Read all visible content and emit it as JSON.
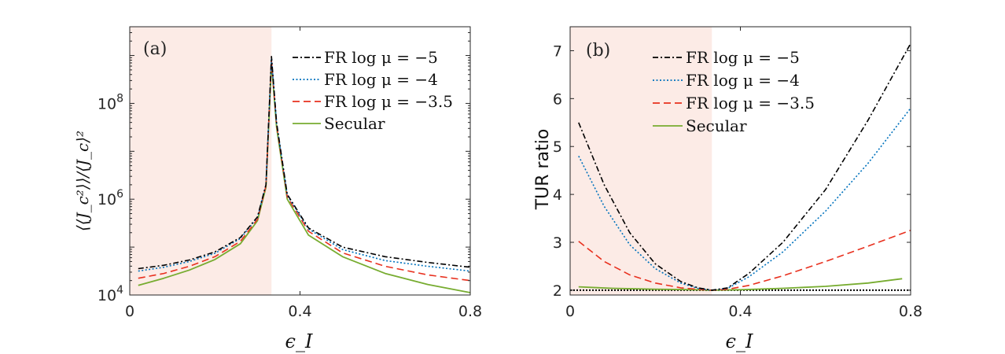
{
  "chart_data": [
    {
      "panel": "(a)",
      "type": "line",
      "yscale": "log",
      "xlabel": "ϵ_I",
      "ylabel": "⟨⟨J_c²⟩⟩/⟨J_c⟩²",
      "xlim": [
        0,
        0.8
      ],
      "ylim_log10": [
        4,
        9.6
      ],
      "xticks": [
        0,
        0.4,
        0.8
      ],
      "xtick_labels": [
        "0",
        "0.4",
        "0.8"
      ],
      "yticks_log10": [
        4,
        6,
        8
      ],
      "shaded_region": [
        0,
        0.333
      ],
      "legend": [
        "FR log μ = −5",
        "FR log μ = −4",
        "FR log μ = −3.5",
        "Secular"
      ],
      "series": [
        {
          "name": "FR log μ = −5",
          "color": "#000000",
          "style": "dashdot",
          "x": [
            0.02,
            0.08,
            0.14,
            0.2,
            0.26,
            0.3,
            0.32,
            0.333,
            0.345,
            0.37,
            0.42,
            0.5,
            0.6,
            0.7,
            0.8
          ],
          "log10_y": [
            4.55,
            4.62,
            4.73,
            4.9,
            5.2,
            5.63,
            6.3,
            8.98,
            7.6,
            6.1,
            5.4,
            5.0,
            4.8,
            4.68,
            4.58
          ]
        },
        {
          "name": "FR log μ = −4",
          "color": "#0072BD",
          "style": "dotted",
          "x": [
            0.02,
            0.08,
            0.14,
            0.2,
            0.26,
            0.3,
            0.32,
            0.333,
            0.345,
            0.37,
            0.42,
            0.5,
            0.6,
            0.7,
            0.8
          ],
          "log10_y": [
            4.5,
            4.58,
            4.7,
            4.87,
            5.18,
            5.62,
            6.3,
            8.95,
            7.58,
            6.08,
            5.38,
            4.95,
            4.72,
            4.6,
            4.5
          ]
        },
        {
          "name": "FR log μ = −3.5",
          "color": "#E8301E",
          "style": "dashed",
          "x": [
            0.02,
            0.08,
            0.14,
            0.2,
            0.26,
            0.3,
            0.32,
            0.333,
            0.345,
            0.37,
            0.42,
            0.5,
            0.6,
            0.7,
            0.8
          ],
          "log10_y": [
            4.35,
            4.45,
            4.6,
            4.8,
            5.12,
            5.58,
            6.28,
            8.9,
            7.55,
            6.05,
            5.33,
            4.88,
            4.6,
            4.42,
            4.3
          ]
        },
        {
          "name": "Secular",
          "color": "#77AC30",
          "style": "solid",
          "x": [
            0.02,
            0.08,
            0.14,
            0.2,
            0.26,
            0.3,
            0.32,
            0.333,
            0.345,
            0.37,
            0.42,
            0.5,
            0.6,
            0.7,
            0.8
          ],
          "log10_y": [
            4.2,
            4.35,
            4.52,
            4.74,
            5.07,
            5.55,
            6.25,
            8.85,
            7.5,
            6.0,
            5.25,
            4.8,
            4.45,
            4.22,
            4.05
          ]
        }
      ]
    },
    {
      "panel": "(b)",
      "type": "line",
      "xlabel": "ϵ_I",
      "ylabel": "TUR ratio",
      "xlim": [
        0,
        0.8
      ],
      "ylim": [
        1.9,
        7.5
      ],
      "xticks": [
        0,
        0.4,
        0.8
      ],
      "xtick_labels": [
        "0",
        "0.4",
        "0.8"
      ],
      "yticks": [
        2,
        3,
        4,
        5,
        6,
        7
      ],
      "ytick_labels": [
        "2",
        "3",
        "4",
        "5",
        "6",
        "7"
      ],
      "shaded_region": [
        0,
        0.333
      ],
      "reference_line": 2,
      "legend": [
        "FR log μ = −5",
        "FR log μ = −4",
        "FR log μ = −3.5",
        "Secular"
      ],
      "series": [
        {
          "name": "FR log μ = −5",
          "color": "#000000",
          "style": "dashdot",
          "x": [
            0.02,
            0.08,
            0.14,
            0.2,
            0.26,
            0.3,
            0.333,
            0.37,
            0.42,
            0.5,
            0.6,
            0.7,
            0.8
          ],
          "values": [
            5.5,
            4.2,
            3.2,
            2.55,
            2.18,
            2.05,
            2.0,
            2.05,
            2.35,
            3.0,
            4.1,
            5.55,
            7.15
          ]
        },
        {
          "name": "FR log μ = −4",
          "color": "#0072BD",
          "style": "dotted",
          "x": [
            0.02,
            0.08,
            0.14,
            0.2,
            0.26,
            0.3,
            0.333,
            0.37,
            0.42,
            0.5,
            0.6,
            0.7,
            0.8
          ],
          "values": [
            4.8,
            3.75,
            2.95,
            2.45,
            2.15,
            2.04,
            2.0,
            2.04,
            2.28,
            2.8,
            3.65,
            4.65,
            5.8
          ]
        },
        {
          "name": "FR log μ = −3.5",
          "color": "#E8301E",
          "style": "dashed",
          "x": [
            0.02,
            0.08,
            0.14,
            0.2,
            0.26,
            0.3,
            0.333,
            0.37,
            0.42,
            0.5,
            0.6,
            0.7,
            0.8
          ],
          "values": [
            3.02,
            2.6,
            2.32,
            2.15,
            2.05,
            2.02,
            2.0,
            2.02,
            2.1,
            2.3,
            2.6,
            2.92,
            3.25
          ]
        },
        {
          "name": "Secular",
          "color": "#77AC30",
          "style": "solid",
          "x": [
            0.02,
            0.1,
            0.2,
            0.3,
            0.333,
            0.4,
            0.5,
            0.6,
            0.7,
            0.78
          ],
          "values": [
            2.07,
            2.04,
            2.02,
            2.01,
            2.0,
            2.01,
            2.04,
            2.08,
            2.15,
            2.24
          ]
        }
      ]
    }
  ],
  "colors": {
    "shade": "#FCEBE6",
    "axis": "#262626",
    "reference": "#000000"
  }
}
